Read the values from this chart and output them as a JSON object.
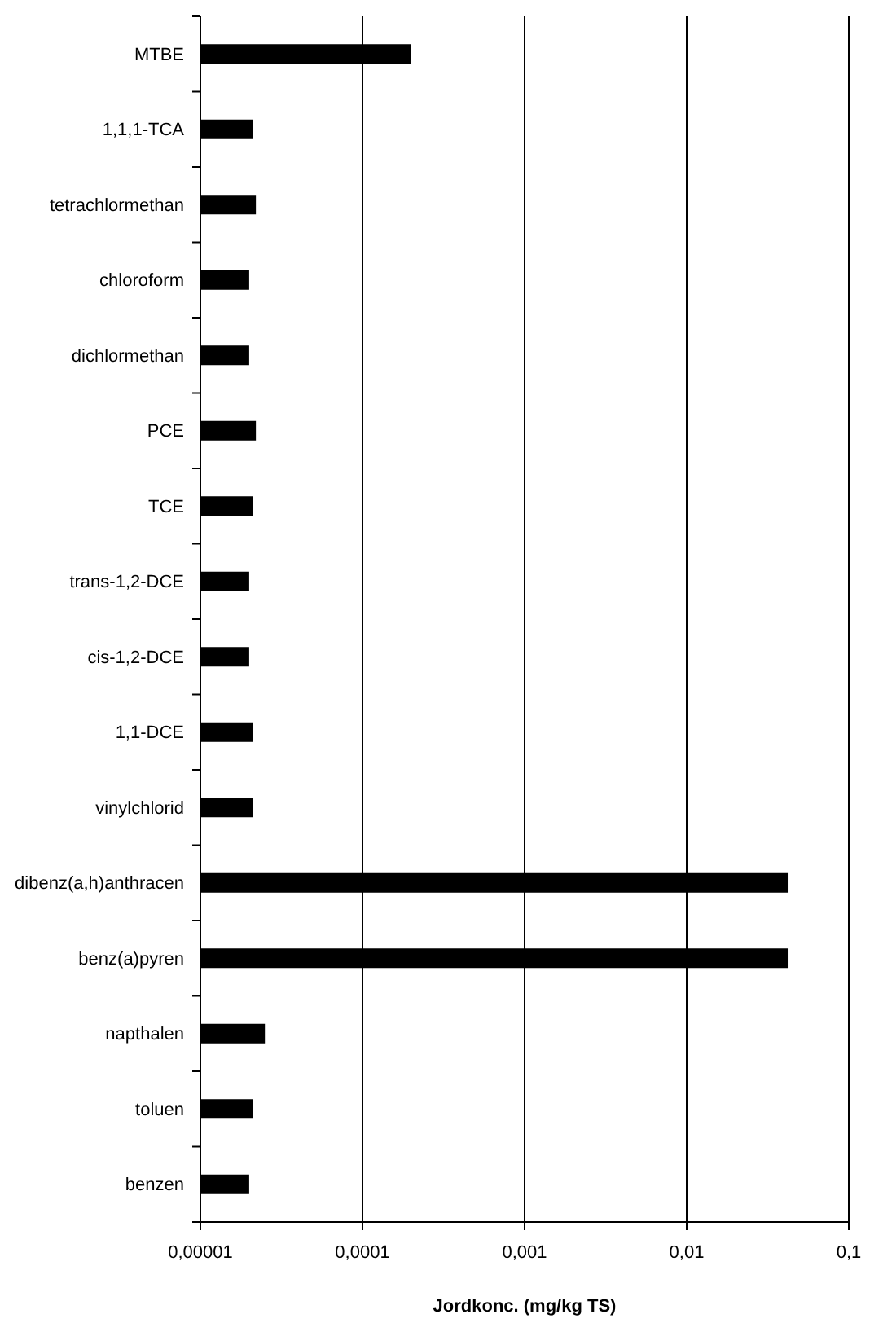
{
  "chart_data": {
    "type": "bar",
    "orientation": "horizontal",
    "xlabel": "Jordkonc. (mg/kg TS)",
    "categories": [
      "MTBE",
      "1,1,1-TCA",
      "tetrachlormethan",
      "chloroform",
      "dichlormethan",
      "PCE",
      "TCE",
      "trans-1,2-DCE",
      "cis-1,2-DCE",
      "1,1-DCE",
      "vinylchlorid",
      "dibenz(a,h)anthracen",
      "benz(a)pyren",
      "napthalen",
      "toluen",
      "benzen"
    ],
    "values": [
      0.0002,
      2.1e-05,
      2.2e-05,
      2e-05,
      2e-05,
      2.2e-05,
      2.1e-05,
      2e-05,
      2e-05,
      2.1e-05,
      2.1e-05,
      0.042,
      0.042,
      2.5e-05,
      2.1e-05,
      2e-05
    ],
    "color": "#000000",
    "log": "x",
    "xlim": [
      1e-05,
      0.1
    ],
    "xticks": [
      {
        "value": 1e-05,
        "label": "0,00001"
      },
      {
        "value": 0.0001,
        "label": "0,0001"
      },
      {
        "value": 0.001,
        "label": "0,001"
      },
      {
        "value": 0.01,
        "label": "0,01"
      },
      {
        "value": 0.1,
        "label": "0,1"
      }
    ],
    "grid": "x"
  }
}
